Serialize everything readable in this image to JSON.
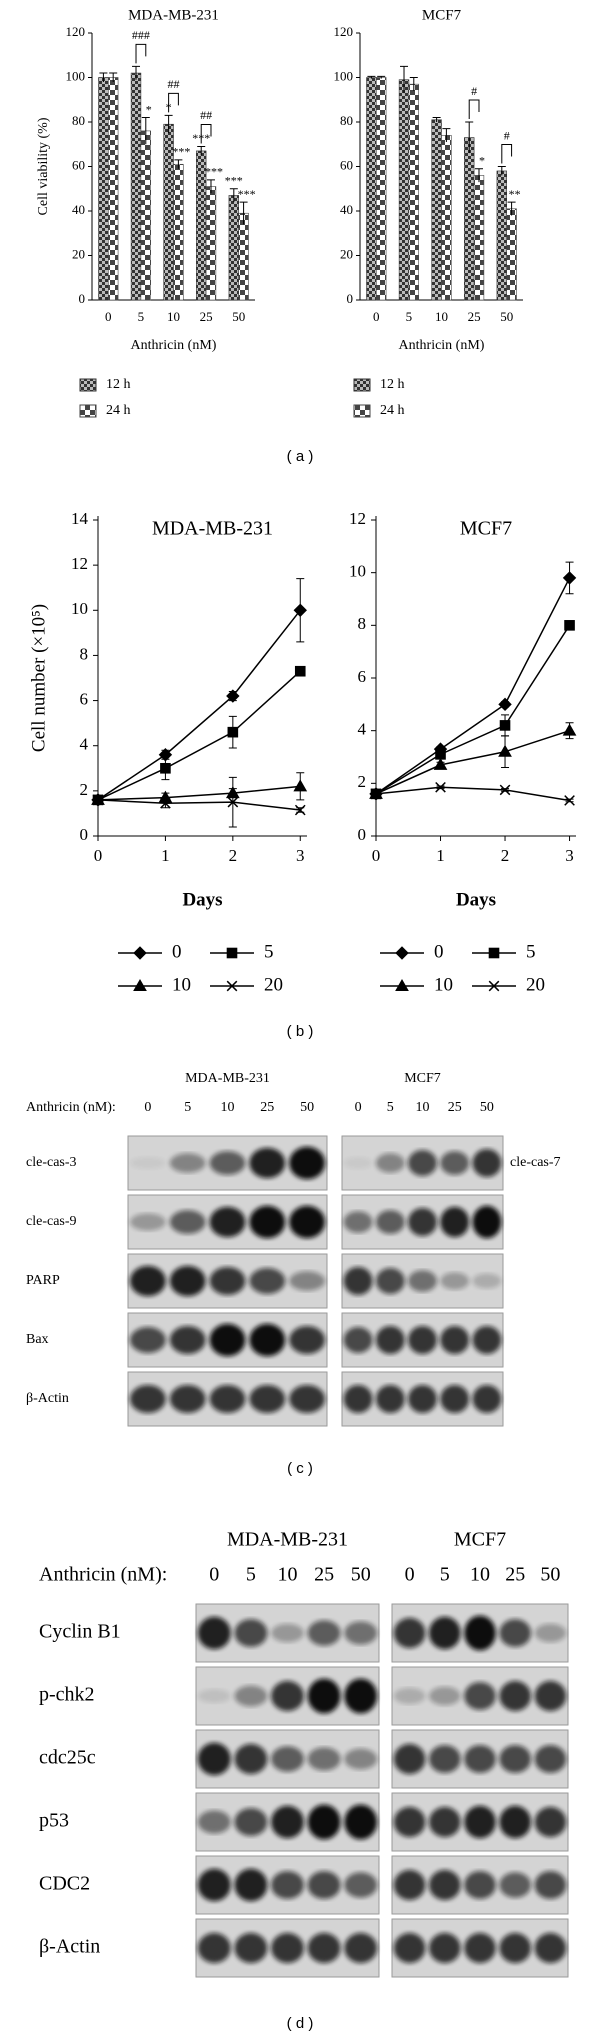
{
  "chart_data": [
    {
      "type": "bar",
      "title": "MDA-MB-231",
      "ylabel": "Cell viability (%)",
      "xlabel": "Anthricin (nM)",
      "categories": [
        "0",
        "5",
        "10",
        "25",
        "50"
      ],
      "series": [
        {
          "name": "12 h",
          "color": "#333333",
          "values": [
            100,
            102,
            79,
            67,
            47
          ],
          "errors": [
            2,
            3,
            4,
            2,
            3
          ],
          "significance": [
            null,
            null,
            "*",
            "***",
            "***"
          ]
        },
        {
          "name": "24 h",
          "color": "#444444",
          "values": [
            100,
            76,
            61,
            51,
            39
          ],
          "errors": [
            2,
            6,
            2,
            3,
            5
          ],
          "significance": [
            null,
            "*",
            "***",
            "***",
            "***"
          ]
        }
      ],
      "brackets": [
        null,
        "###",
        "##",
        "##",
        null
      ],
      "ylim": [
        0,
        120
      ],
      "yticks": [
        0,
        20,
        40,
        60,
        80,
        100,
        120
      ]
    },
    {
      "type": "bar",
      "title": "MCF7",
      "xlabel": "Anthricin (nM)",
      "categories": [
        "0",
        "5",
        "10",
        "25",
        "50"
      ],
      "series": [
        {
          "name": "12 h",
          "color": "#333333",
          "values": [
            100,
            99,
            81,
            73,
            58
          ],
          "errors": [
            0.5,
            6,
            1,
            7,
            2
          ],
          "significance": [
            null,
            null,
            null,
            null,
            null
          ]
        },
        {
          "name": "24 h",
          "color": "#444444",
          "values": [
            100,
            97,
            74,
            56,
            41
          ],
          "errors": [
            0.5,
            3,
            3,
            3,
            3
          ],
          "significance": [
            null,
            null,
            null,
            "*",
            "**"
          ]
        }
      ],
      "brackets": [
        null,
        null,
        null,
        "#",
        "#"
      ],
      "ylim": [
        0,
        120
      ],
      "yticks": [
        0,
        20,
        40,
        60,
        80,
        100,
        120
      ]
    },
    {
      "type": "line",
      "title": "MDA-MB-231",
      "ylabel": "Cell number (×10⁵)",
      "xlabel": "Days",
      "x": [
        0,
        1,
        2,
        3
      ],
      "series": [
        {
          "name": "0",
          "color": "#000000",
          "marker": "diamond",
          "values": [
            1.6,
            3.6,
            6.2,
            10.0
          ],
          "errors": [
            0.1,
            0.2,
            0.2,
            1.4
          ]
        },
        {
          "name": "5",
          "color": "#000000",
          "marker": "square",
          "values": [
            1.6,
            3.0,
            4.6,
            7.3
          ],
          "errors": [
            0.1,
            0.5,
            0.7,
            0.2
          ]
        },
        {
          "name": "10",
          "color": "#000000",
          "marker": "triangle",
          "values": [
            1.6,
            1.7,
            1.9,
            2.2
          ],
          "errors": [
            0.1,
            0.2,
            0.2,
            0.6
          ]
        },
        {
          "name": "20",
          "color": "#000000",
          "marker": "x",
          "values": [
            1.6,
            1.45,
            1.5,
            1.15
          ],
          "errors": [
            0.1,
            0.2,
            1.1,
            0.1
          ]
        }
      ],
      "xlim": [
        0,
        3.1
      ],
      "xticks": [
        0,
        1,
        2,
        3
      ],
      "ylim": [
        0,
        14
      ],
      "yticks": [
        0,
        2,
        4,
        6,
        8,
        10,
        12,
        14
      ]
    },
    {
      "type": "line",
      "title": "MCF7",
      "xlabel": "Days",
      "x": [
        0,
        1,
        2,
        3
      ],
      "series": [
        {
          "name": "0",
          "color": "#000000",
          "marker": "diamond",
          "values": [
            1.6,
            3.3,
            5.0,
            9.8
          ],
          "errors": [
            0.1,
            0.1,
            0.1,
            0.6
          ]
        },
        {
          "name": "5",
          "color": "#000000",
          "marker": "square",
          "values": [
            1.6,
            3.1,
            4.2,
            8.0
          ],
          "errors": [
            0.1,
            0.1,
            0.4,
            0.1
          ]
        },
        {
          "name": "10",
          "color": "#000000",
          "marker": "triangle",
          "values": [
            1.6,
            2.7,
            3.2,
            4.0
          ],
          "errors": [
            0.1,
            0.1,
            0.6,
            0.3
          ]
        },
        {
          "name": "20",
          "color": "#000000",
          "marker": "x",
          "values": [
            1.6,
            1.85,
            1.75,
            1.35
          ],
          "errors": [
            0.05,
            0.05,
            0.05,
            0.05
          ]
        }
      ],
      "xlim": [
        0,
        3.1
      ],
      "xticks": [
        0,
        1,
        2,
        3
      ],
      "ylim": [
        0,
        12
      ],
      "yticks": [
        0,
        2,
        4,
        6,
        8,
        10,
        12
      ]
    }
  ],
  "panel_labels": [
    "( a )",
    "( b )",
    "( c )",
    "( d )"
  ],
  "blots": [
    {
      "header": "Anthricin (nM):",
      "lanes": [
        "0",
        "5",
        "10",
        "25",
        "50"
      ],
      "groups": [
        "MDA-MB-231",
        "MCF7"
      ],
      "rows": [
        "cle-cas-3",
        "cle-cas-9",
        "PARP",
        "Bax",
        "β-Actin"
      ],
      "right_labels": [
        "cle-cas-7"
      ]
    },
    {
      "header": "Anthricin (nM):",
      "lanes": [
        "0",
        "5",
        "10",
        "25",
        "50"
      ],
      "groups": [
        "MDA-MB-231",
        "MCF7"
      ],
      "rows": [
        "Cyclin B1",
        "p-chk2",
        "cdc25c",
        "p53",
        "CDC2",
        "β-Actin"
      ]
    }
  ]
}
